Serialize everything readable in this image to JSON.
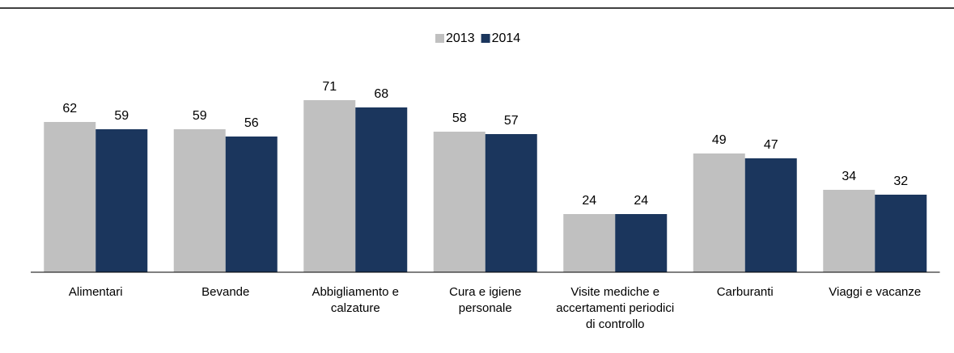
{
  "chart_data": {
    "type": "bar",
    "categories": [
      "Alimentari",
      "Bevande",
      "Abbigliamento e calzature",
      "Cura e igiene personale",
      "Visite mediche e accertamenti periodici di controllo",
      "Carburanti",
      "Viaggi e vacanze"
    ],
    "series": [
      {
        "name": "2013",
        "color": "#c0c0c0",
        "values": [
          62,
          59,
          71,
          58,
          24,
          49,
          34
        ]
      },
      {
        "name": "2014",
        "color": "#1b365d",
        "values": [
          59,
          56,
          68,
          57,
          24,
          47,
          32
        ]
      }
    ]
  }
}
